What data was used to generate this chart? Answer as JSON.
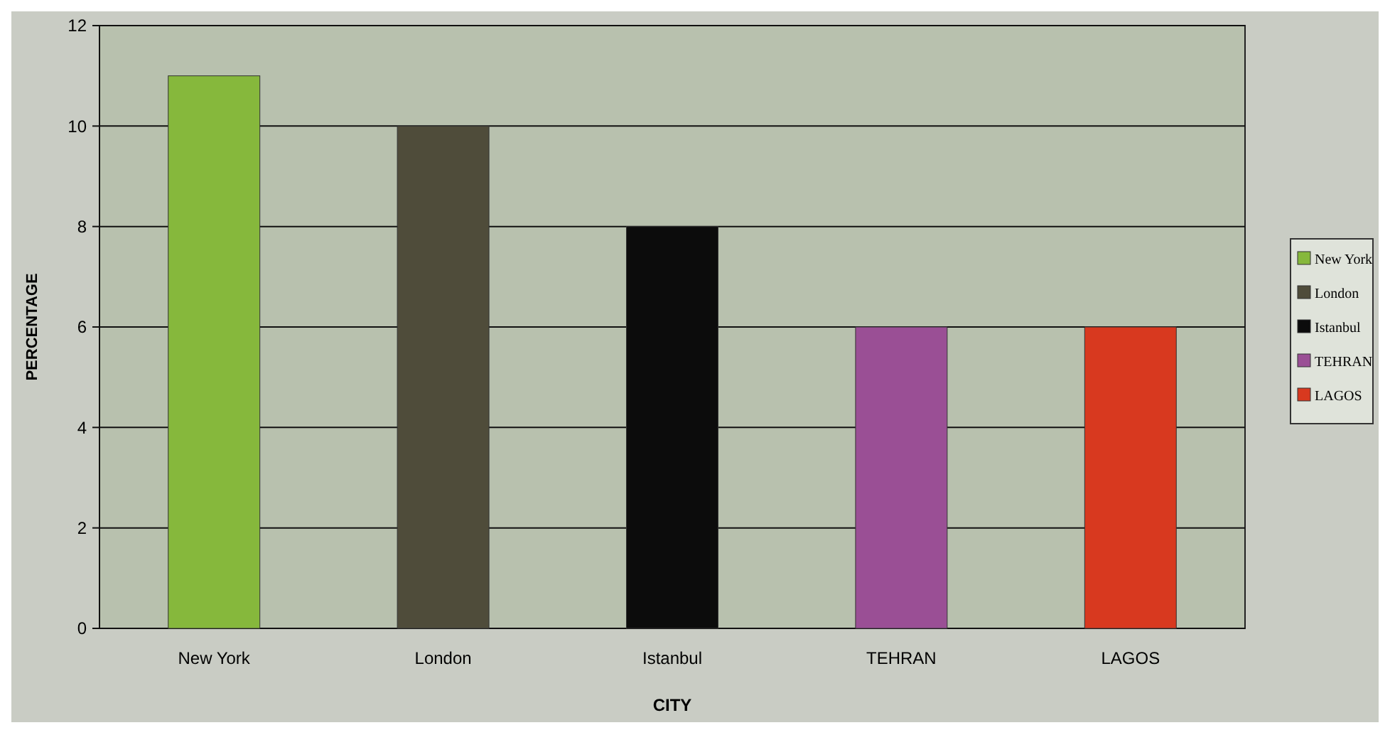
{
  "chart_data": {
    "type": "bar",
    "xlabel": "CITY",
    "ylabel": "PERCENTAGE",
    "categories": [
      "New York",
      "London",
      "Istanbul",
      "TEHRAN",
      "LAGOS"
    ],
    "series": [
      {
        "name": "New York",
        "color": "#86b83c",
        "values": [
          11,
          null,
          null,
          null,
          null
        ]
      },
      {
        "name": "London",
        "color": "#4f4c3a",
        "values": [
          null,
          10,
          null,
          null,
          null
        ]
      },
      {
        "name": "Istanbul",
        "color": "#0c0c0c",
        "values": [
          null,
          null,
          8,
          null,
          null
        ]
      },
      {
        "name": "TEHRAN",
        "color": "#9a4f95",
        "values": [
          null,
          null,
          null,
          6,
          null
        ]
      },
      {
        "name": "LAGOS",
        "color": "#d8391f",
        "values": [
          null,
          null,
          null,
          null,
          6
        ]
      }
    ],
    "ylim": [
      0,
      12
    ],
    "yticks": [
      0,
      2,
      4,
      6,
      8,
      10,
      12
    ],
    "grid": "y",
    "legend": "right"
  }
}
